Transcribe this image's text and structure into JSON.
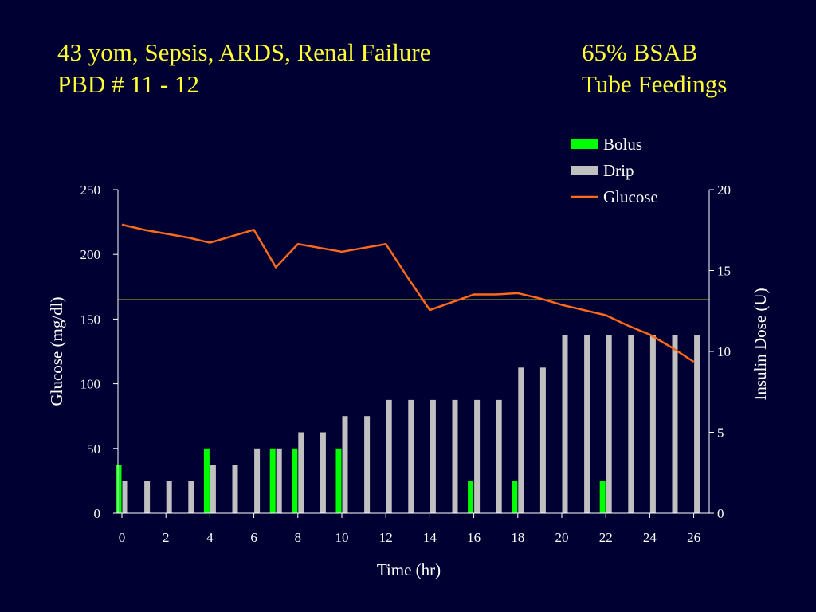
{
  "slide": {
    "title_left": [
      "43 yom, Sepsis, ARDS, Renal Failure",
      "PBD # 11 - 12"
    ],
    "title_right": [
      "65% BSAB",
      "Tube Feedings"
    ]
  },
  "colors": {
    "background": "#000033",
    "title": "#ffff33",
    "axis_text": "#ffffff",
    "bolus": "#00ff00",
    "drip": "#c0c0c0",
    "glucose": "#ff6a1a",
    "reference_lines": "#b8b800"
  },
  "chart_data": {
    "type": "bar",
    "xlabel": "Time (hr)",
    "ylabel": "Glucose (mg/dl)",
    "y2label": "Insulin Dose (U)",
    "xlim": [
      0,
      26
    ],
    "ylim": [
      0,
      250
    ],
    "y2lim": [
      0,
      20
    ],
    "x_ticks": [
      0,
      2,
      4,
      6,
      8,
      10,
      12,
      14,
      16,
      18,
      20,
      22,
      24,
      26
    ],
    "y_ticks": [
      0,
      50,
      100,
      150,
      200,
      250
    ],
    "y2_ticks": [
      0,
      5,
      10,
      15,
      20
    ],
    "legend": {
      "position": "top-right",
      "entries": [
        "Bolus",
        "Drip",
        "Glucose"
      ]
    },
    "reference_lines_glucose": [
      165,
      113
    ],
    "series": [
      {
        "name": "Bolus",
        "axis": "right",
        "kind": "bar",
        "points": [
          [
            0,
            3
          ],
          [
            4,
            4
          ],
          [
            7,
            4
          ],
          [
            8,
            4
          ],
          [
            10,
            4
          ],
          [
            16,
            2
          ],
          [
            18,
            2
          ],
          [
            22,
            2
          ]
        ]
      },
      {
        "name": "Drip",
        "axis": "right",
        "kind": "bar",
        "points": [
          [
            0,
            2
          ],
          [
            1,
            2
          ],
          [
            2,
            2
          ],
          [
            3,
            2
          ],
          [
            4,
            3
          ],
          [
            5,
            3
          ],
          [
            6,
            4
          ],
          [
            7,
            4
          ],
          [
            8,
            5
          ],
          [
            9,
            5
          ],
          [
            10,
            6
          ],
          [
            11,
            6
          ],
          [
            12,
            7
          ],
          [
            13,
            7
          ],
          [
            14,
            7
          ],
          [
            15,
            7
          ],
          [
            16,
            7
          ],
          [
            17,
            7
          ],
          [
            18,
            9
          ],
          [
            19,
            9
          ],
          [
            20,
            11
          ],
          [
            21,
            11
          ],
          [
            22,
            11
          ],
          [
            23,
            11
          ],
          [
            24,
            11
          ],
          [
            25,
            11
          ],
          [
            26,
            11
          ]
        ]
      },
      {
        "name": "Glucose",
        "axis": "left",
        "kind": "line",
        "points": [
          [
            0,
            223
          ],
          [
            1,
            219
          ],
          [
            2,
            216
          ],
          [
            3,
            213
          ],
          [
            4,
            209
          ],
          [
            5,
            214
          ],
          [
            6,
            219
          ],
          [
            7,
            190
          ],
          [
            8,
            208
          ],
          [
            9,
            205
          ],
          [
            10,
            202
          ],
          [
            11,
            205
          ],
          [
            12,
            208
          ],
          [
            13,
            182
          ],
          [
            14,
            157
          ],
          [
            15,
            163
          ],
          [
            16,
            169
          ],
          [
            17,
            169
          ],
          [
            18,
            170
          ],
          [
            19,
            166
          ],
          [
            20,
            161
          ],
          [
            21,
            157
          ],
          [
            22,
            153
          ],
          [
            23,
            145
          ],
          [
            24,
            138
          ],
          [
            25,
            128
          ],
          [
            26,
            117
          ]
        ]
      }
    ]
  }
}
